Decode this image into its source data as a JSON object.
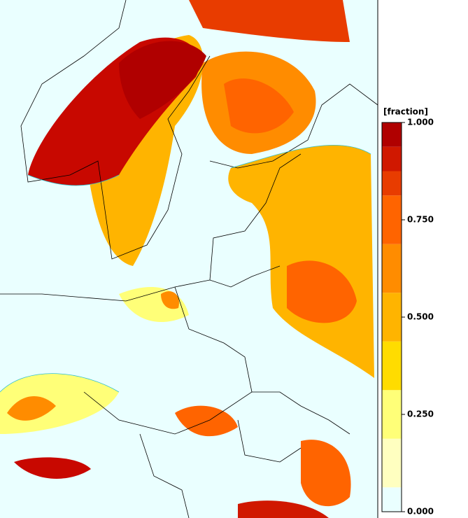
{
  "colorbar": {
    "label": "[fraction]",
    "bounds": [
      0,
      0.0625,
      0.1875,
      0.3125,
      0.4375,
      0.5625,
      0.6875,
      0.8125,
      0.875,
      0.9375,
      1.0
    ],
    "colors": [
      "#eaffff",
      "#ffffc0",
      "#ffff78",
      "#ffdc00",
      "#ffb400",
      "#ff8c00",
      "#ff6400",
      "#e83c00",
      "#d01800",
      "#b00000"
    ],
    "lim": [
      0,
      1.0
    ],
    "ticks": [
      {
        "value": 0,
        "label": "0.000"
      },
      {
        "value": 0.25,
        "label": "0.250"
      },
      {
        "value": 0.5,
        "label": "0.500"
      },
      {
        "value": 0.75,
        "label": "0.750"
      },
      {
        "value": 1.0,
        "label": "1.000"
      }
    ]
  }
}
